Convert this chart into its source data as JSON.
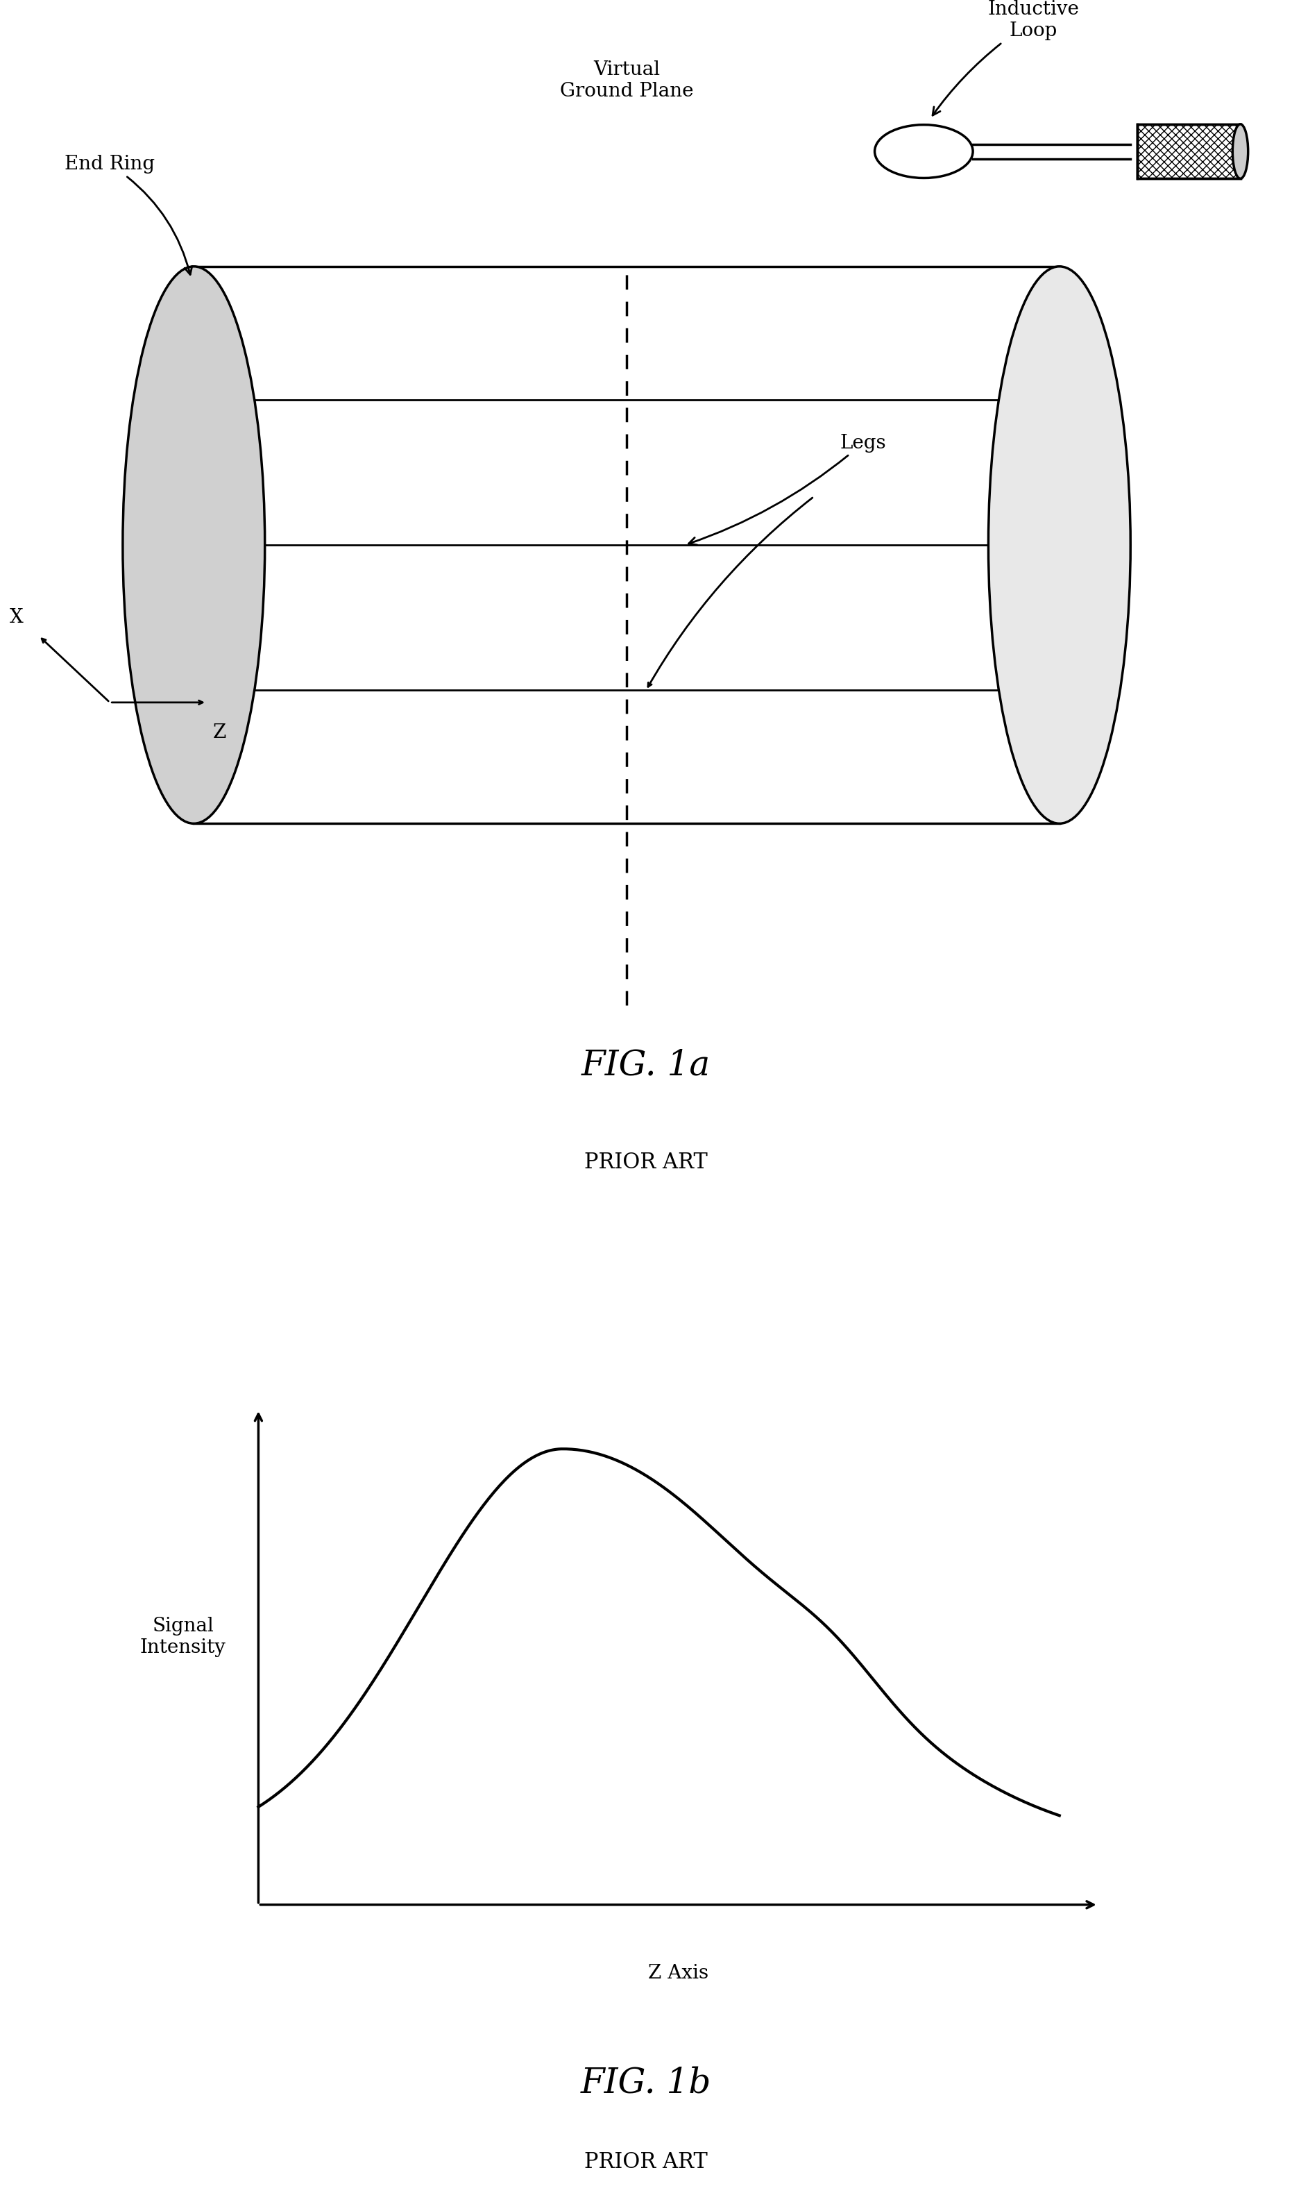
{
  "bg_color": "#ffffff",
  "fig_width": 18.62,
  "fig_height": 31.72,
  "fig1a_title": "FIG. 1a",
  "fig1a_subtitle": "PRIOR ART",
  "fig1b_title": "FIG. 1b",
  "fig1b_subtitle": "PRIOR ART",
  "label_end_ring": "End Ring",
  "label_virtual_ground": "Virtual\nGround Plane",
  "label_inductive_loop": "Inductive\nLoop",
  "label_legs": "Legs",
  "label_x": "X",
  "label_z": "Z",
  "label_signal": "Signal\nIntensity",
  "label_zaxis": "Z Axis",
  "line_color": "#000000",
  "line_width": 2.5
}
